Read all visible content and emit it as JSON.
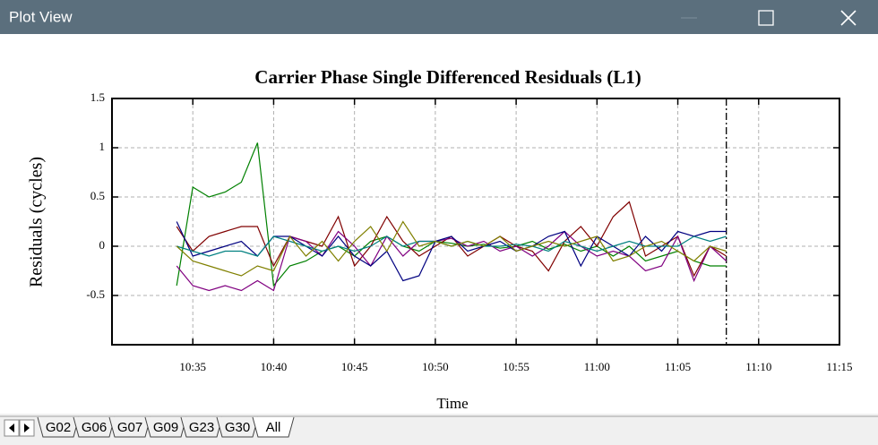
{
  "window": {
    "title": "Plot View"
  },
  "tabs": [
    "G02",
    "G06",
    "G07",
    "G09",
    "G23",
    "G30",
    "All"
  ],
  "chart_data": {
    "type": "line",
    "title": "Carrier Phase Single Differenced Residuals (L1)",
    "x_label": "Time",
    "y_label": "Residuals (cycles)",
    "x": [
      "10:34",
      "10:35",
      "10:36",
      "10:37",
      "10:38",
      "10:39",
      "10:40",
      "10:41",
      "10:42",
      "10:43",
      "10:44",
      "10:45",
      "10:46",
      "10:47",
      "10:48",
      "10:49",
      "10:50",
      "10:51",
      "10:52",
      "10:53",
      "10:54",
      "10:55",
      "10:56",
      "10:57",
      "10:58",
      "10:59",
      "11:00",
      "11:01",
      "11:02",
      "11:03",
      "11:04",
      "11:05",
      "11:06",
      "11:07",
      "11:08"
    ],
    "series": [
      {
        "color": "#008000",
        "values": [
          -0.4,
          0.6,
          0.5,
          0.55,
          0.65,
          1.05,
          -0.4,
          -0.2,
          -0.15,
          -0.05,
          0.0,
          -0.1,
          0.05,
          0.1,
          0.0,
          -0.05,
          0.05,
          0.03,
          0.0,
          0.02,
          -0.02,
          0.0,
          0.05,
          -0.03,
          0.02,
          -0.05,
          0.0,
          -0.1,
          0.0,
          -0.15,
          -0.1,
          -0.05,
          -0.15,
          -0.2,
          -0.2
        ]
      },
      {
        "color": "#800000",
        "values": [
          0.2,
          -0.05,
          0.1,
          0.15,
          0.2,
          0.2,
          -0.2,
          0.1,
          0.05,
          0.0,
          0.3,
          -0.2,
          0.0,
          0.3,
          0.05,
          -0.1,
          0.0,
          0.1,
          -0.1,
          0.0,
          0.1,
          0.0,
          -0.05,
          -0.25,
          0.05,
          0.2,
          0.0,
          0.3,
          0.45,
          -0.1,
          0.0,
          0.1,
          -0.3,
          0.0,
          -0.1
        ]
      },
      {
        "color": "#800080",
        "values": [
          -0.2,
          -0.4,
          -0.45,
          -0.4,
          -0.45,
          -0.35,
          -0.45,
          0.1,
          0.05,
          -0.1,
          0.15,
          0.0,
          -0.2,
          0.1,
          -0.1,
          0.05,
          0.05,
          0.08,
          0.0,
          0.05,
          -0.05,
          0.0,
          -0.1,
          0.0,
          0.15,
          0.0,
          -0.1,
          -0.05,
          -0.1,
          -0.25,
          -0.2,
          0.1,
          -0.35,
          0.0,
          -0.15
        ]
      },
      {
        "color": "#000080",
        "values": [
          0.25,
          -0.1,
          -0.05,
          0.0,
          0.05,
          -0.1,
          0.1,
          0.1,
          0.0,
          -0.1,
          0.1,
          -0.1,
          -0.2,
          -0.05,
          -0.35,
          -0.3,
          0.05,
          0.1,
          -0.05,
          0.0,
          0.05,
          -0.05,
          0.0,
          0.1,
          0.15,
          -0.2,
          0.1,
          0.0,
          -0.1,
          0.1,
          -0.05,
          0.15,
          0.1,
          0.15,
          0.15
        ]
      },
      {
        "color": "#008080",
        "values": [
          0.0,
          -0.05,
          -0.1,
          -0.05,
          -0.05,
          -0.1,
          0.1,
          0.05,
          0.0,
          -0.05,
          0.0,
          -0.05,
          0.0,
          0.1,
          0.0,
          0.05,
          0.05,
          0.0,
          0.05,
          0.0,
          0.0,
          0.02,
          0.0,
          -0.05,
          0.05,
          0.0,
          -0.05,
          0.0,
          0.05,
          0.0,
          0.0,
          0.0,
          0.1,
          0.05,
          0.1
        ]
      },
      {
        "color": "#808000",
        "values": [
          0.0,
          -0.15,
          -0.2,
          -0.25,
          -0.3,
          -0.2,
          -0.25,
          0.1,
          -0.1,
          0.05,
          -0.15,
          0.05,
          0.2,
          -0.05,
          0.25,
          0.0,
          0.05,
          0.0,
          0.05,
          0.0,
          0.1,
          -0.05,
          0.0,
          0.05,
          0.0,
          0.05,
          0.1,
          -0.15,
          -0.1,
          0.0,
          0.05,
          -0.05,
          -0.15,
          0.0,
          -0.05
        ]
      }
    ],
    "xlim": [
      "10:30",
      "11:15"
    ],
    "xticks": [
      "10:35",
      "10:40",
      "10:45",
      "10:50",
      "10:55",
      "11:00",
      "11:05",
      "11:10",
      "11:15"
    ],
    "ylim": [
      -1,
      1.5
    ],
    "yticks": [
      1.5,
      1,
      0.5,
      0,
      -0.5
    ],
    "grid": true,
    "cursor_x": "11:08"
  }
}
